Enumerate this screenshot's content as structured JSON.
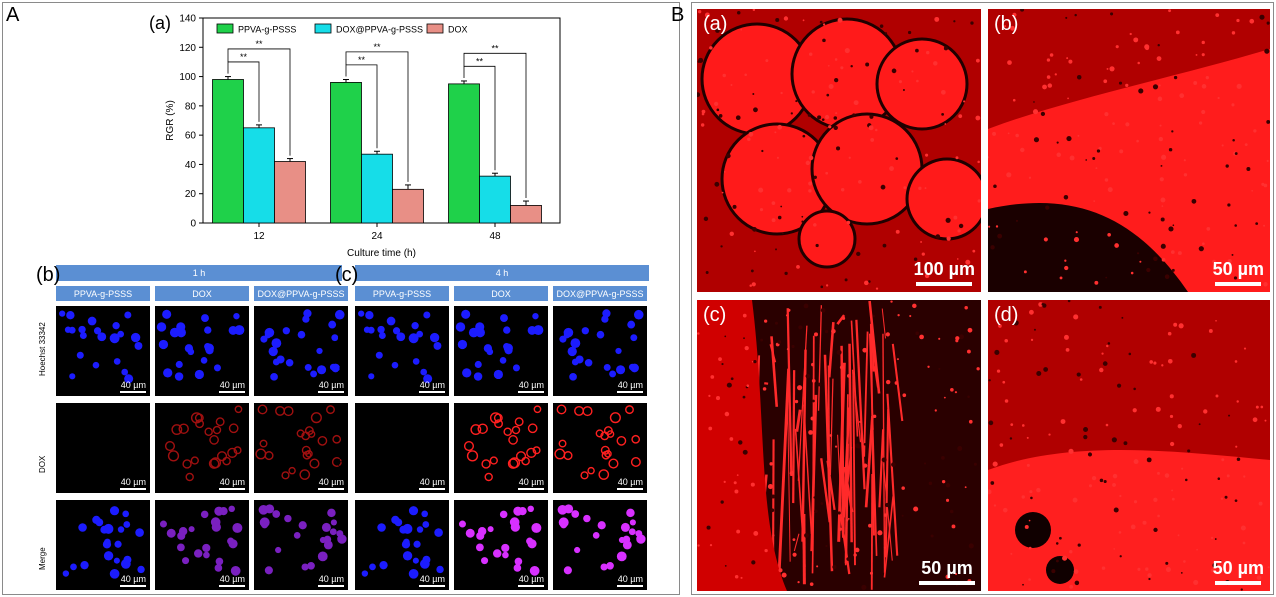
{
  "figure_A_label": "A",
  "figure_B_label": "B",
  "chart_data": {
    "type": "bar",
    "panel_label": "(a)",
    "categories": [
      "12",
      "24",
      "48"
    ],
    "series": [
      {
        "name": "PPVA-g-PSSS",
        "values": [
          98,
          96,
          95
        ],
        "errors": [
          2,
          2,
          2
        ],
        "color": "#1fd14a"
      },
      {
        "name": "DOX@PPVA-g-PSSS",
        "values": [
          65,
          47,
          32
        ],
        "errors": [
          2,
          2,
          2
        ],
        "color": "#16dde8"
      },
      {
        "name": "DOX",
        "values": [
          42,
          23,
          12
        ],
        "errors": [
          2,
          3,
          3
        ],
        "color": "#e88f86"
      }
    ],
    "xlabel": "Culture time (h)",
    "ylabel": "RGR (%)",
    "ylim": [
      0,
      140
    ],
    "yticks": [
      "0",
      "20",
      "40",
      "60",
      "80",
      "100",
      "120",
      "140"
    ],
    "significance": "**",
    "legend_position": "top"
  },
  "panel_b": {
    "label": "(b)",
    "time": "1 h",
    "columns": [
      "PPVA-g-PSSS",
      "DOX",
      "DOX@PPVA-g-PSSS"
    ],
    "rows": [
      "Hoechst 33342",
      "DOX",
      "Merge"
    ],
    "scale": "40 µm"
  },
  "panel_c": {
    "label": "(c)",
    "time": "4 h",
    "columns": [
      "PPVA-g-PSSS",
      "DOX",
      "DOX@PPVA-g-PSSS"
    ],
    "rows": [
      "Hoechst 33342",
      "DOX",
      "Merge"
    ],
    "scale": "40 µm"
  },
  "panel_B": {
    "a": {
      "label": "(a)",
      "scale": "100 µm"
    },
    "b": {
      "label": "(b)",
      "scale": "50 µm"
    },
    "c": {
      "label": "(c)",
      "scale": "50 µm"
    },
    "d": {
      "label": "(d)",
      "scale": "50 µm"
    }
  }
}
